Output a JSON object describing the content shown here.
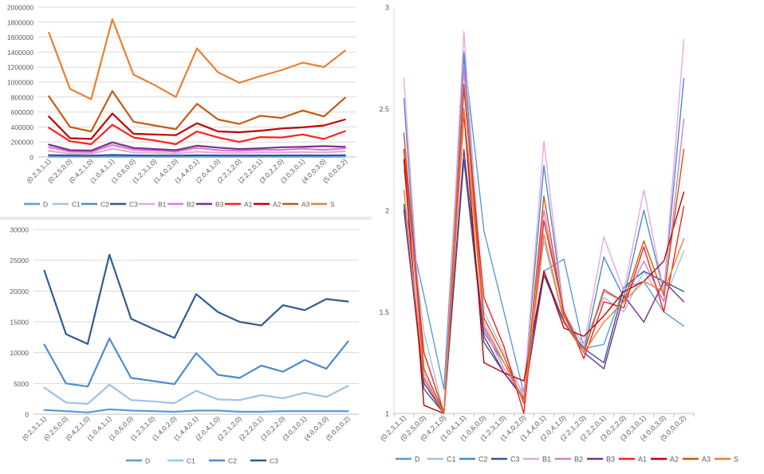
{
  "colors": {
    "D": "#5b9bd5",
    "C1": "#9dc3e6",
    "C2": "#4a8bd0",
    "C3": "#2f5d8f",
    "B1": "#e8a7e0",
    "B2": "#d67fcf",
    "B3": "#7b2f8c",
    "A1": "#ff1f1f",
    "A2": "#c00000",
    "A3": "#c55a11",
    "S": "#ed7d31"
  },
  "chart_data": [
    {
      "type": "line",
      "categories": [
        "(0.2,3,1,1)",
        "(0.2,5,0,0)",
        "(0.4,2,1,0)",
        "(1.0,4,1,1)",
        "(1.0,6,0,0)",
        "(1.2,3,1,0)",
        "(1.4,0,2,0)",
        "(1.4,4,0,1)",
        "(2.0,4,1,0)",
        "(2.2,1,2,0)",
        "(2.2,2,0,1)",
        "(3.0,2,2,0)",
        "(3.0,3,0,1)",
        "(4.0,0,3,0)",
        "(5.0,0,0,2)"
      ],
      "ylim": [
        0,
        2000000
      ],
      "yticks": [
        "0",
        "200000",
        "400000",
        "600000",
        "800000",
        "1000000",
        "1200000",
        "1400000",
        "1600000",
        "1800000",
        "2000000"
      ],
      "series": [
        {
          "name": "D",
          "values": [
            3000,
            3000,
            3000,
            4000,
            3000,
            3000,
            3000,
            3000,
            3000,
            3000,
            3000,
            3000,
            3000,
            3000,
            3000
          ]
        },
        {
          "name": "C1",
          "values": [
            15000,
            12000,
            11000,
            18000,
            13000,
            12000,
            11000,
            14000,
            12000,
            11000,
            12000,
            12000,
            13000,
            12000,
            14000
          ]
        },
        {
          "name": "C2",
          "values": [
            20000,
            16000,
            15000,
            22000,
            17000,
            16000,
            15000,
            18000,
            16000,
            15000,
            16000,
            16000,
            17000,
            16000,
            19000
          ]
        },
        {
          "name": "C3",
          "values": [
            25000,
            20000,
            18000,
            27000,
            21000,
            19000,
            18000,
            22000,
            20000,
            19000,
            20000,
            20000,
            21000,
            20000,
            23000
          ]
        },
        {
          "name": "B1",
          "values": [
            80000,
            45000,
            40000,
            110000,
            60000,
            55000,
            45000,
            70000,
            55000,
            50000,
            60000,
            60000,
            65000,
            60000,
            75000
          ]
        },
        {
          "name": "B2",
          "values": [
            130000,
            70000,
            65000,
            160000,
            95000,
            85000,
            70000,
            120000,
            90000,
            80000,
            95000,
            95000,
            110000,
            95000,
            115000
          ]
        },
        {
          "name": "B3",
          "values": [
            165000,
            90000,
            85000,
            195000,
            120000,
            105000,
            90000,
            150000,
            125000,
            105000,
            115000,
            130000,
            135000,
            145000,
            135000
          ]
        },
        {
          "name": "A1",
          "values": [
            390000,
            210000,
            170000,
            430000,
            260000,
            220000,
            170000,
            340000,
            260000,
            200000,
            265000,
            260000,
            300000,
            240000,
            345000
          ]
        },
        {
          "name": "A2",
          "values": [
            540000,
            250000,
            240000,
            580000,
            310000,
            300000,
            290000,
            450000,
            340000,
            330000,
            350000,
            380000,
            395000,
            420000,
            500000
          ]
        },
        {
          "name": "A3",
          "values": [
            810000,
            400000,
            340000,
            880000,
            470000,
            420000,
            370000,
            710000,
            500000,
            440000,
            550000,
            520000,
            620000,
            540000,
            790000
          ]
        },
        {
          "name": "S",
          "values": [
            1660000,
            910000,
            770000,
            1840000,
            1100000,
            960000,
            800000,
            1450000,
            1130000,
            990000,
            1080000,
            1160000,
            1260000,
            1200000,
            1420000
          ]
        }
      ]
    },
    {
      "type": "line",
      "categories": [
        "(0.2,3,1,1)",
        "(0.2,5,0,0)",
        "(0.4,2,1,0)",
        "(1.0,4,1,1)",
        "(1.0,6,0,0)",
        "(1.2,3,1,0)",
        "(1.4,0,2,0)",
        "(1.4,4,0,1)",
        "(2.0,4,1,0)",
        "(2.2,1,2,0)",
        "(2.2,2,0,1)",
        "(3.0,2,2,0)",
        "(3.0,3,0,1)",
        "(4.0,0,3,0)",
        "(5.0,0,0,2)"
      ],
      "ylim": [
        0,
        30000
      ],
      "yticks": [
        "0",
        "5000",
        "10000",
        "15000",
        "20000",
        "25000",
        "30000"
      ],
      "series": [
        {
          "name": "D",
          "values": [
            700,
            500,
            300,
            800,
            600,
            500,
            400,
            600,
            600,
            400,
            400,
            500,
            500,
            500,
            500
          ]
        },
        {
          "name": "C1",
          "values": [
            4300,
            1900,
            1700,
            4800,
            2300,
            2100,
            1800,
            3800,
            2400,
            2300,
            3100,
            2600,
            3500,
            2800,
            4600
          ]
        },
        {
          "name": "C2",
          "values": [
            11300,
            5000,
            4500,
            12300,
            5900,
            5400,
            4900,
            9900,
            6400,
            5900,
            7900,
            6900,
            8800,
            7400,
            11800
          ]
        },
        {
          "name": "C3",
          "values": [
            23300,
            13000,
            11400,
            25900,
            15500,
            13900,
            12400,
            19500,
            16600,
            15000,
            14400,
            17700,
            16900,
            18700,
            18300
          ]
        }
      ]
    },
    {
      "type": "line",
      "categories": [
        "(0.2,3,1,1)",
        "(0.2,5,0,0)",
        "(0.4,2,1,0)",
        "(1.0,4,1,1)",
        "(1.0,6,0,0)",
        "(1.2,3,1,0)",
        "(1.4,0,2,0)",
        "(1.4,4,0,1)",
        "(2.0,4,1,0)",
        "(2.2,1,2,0)",
        "(2.2,2,0,1)",
        "(3.0,2,2,0)",
        "(3.0,3,0,1)",
        "(4.0,0,3,0)",
        "(5.0,0,0,2)"
      ],
      "ylim": [
        1,
        3
      ],
      "yticks": [
        "1",
        "1.5",
        "2",
        "2.5",
        "3"
      ],
      "series": [
        {
          "name": "D",
          "values": [
            2.03,
            1.58,
            1.12,
            2.78,
            1.9,
            1.5,
            1.1,
            1.7,
            1.76,
            1.32,
            1.34,
            1.62,
            1.65,
            1.5,
            1.43
          ]
        },
        {
          "name": "C1",
          "values": [
            2.2,
            1.4,
            1.0,
            2.5,
            1.5,
            1.3,
            1.08,
            1.85,
            1.45,
            1.35,
            1.57,
            1.5,
            1.7,
            1.55,
            1.8
          ]
        },
        {
          "name": "C2",
          "values": [
            2.55,
            1.15,
            1.0,
            2.77,
            1.4,
            1.25,
            1.1,
            2.22,
            1.5,
            1.3,
            1.77,
            1.57,
            2.0,
            1.6,
            2.65
          ]
        },
        {
          "name": "C3",
          "values": [
            2.03,
            1.12,
            1.0,
            2.25,
            1.35,
            1.2,
            1.08,
            1.68,
            1.45,
            1.32,
            1.25,
            1.62,
            1.7,
            1.65,
            1.6
          ]
        },
        {
          "name": "B1",
          "values": [
            2.65,
            1.2,
            1.0,
            2.88,
            1.45,
            1.25,
            1.1,
            2.34,
            1.5,
            1.33,
            1.87,
            1.6,
            2.1,
            1.6,
            2.84
          ]
        },
        {
          "name": "B2",
          "values": [
            2.3,
            1.18,
            1.0,
            2.7,
            1.42,
            1.22,
            1.08,
            2.0,
            1.48,
            1.3,
            1.6,
            1.55,
            1.75,
            1.55,
            2.45
          ]
        },
        {
          "name": "B3",
          "values": [
            2.0,
            1.15,
            1.0,
            2.3,
            1.38,
            1.2,
            1.07,
            1.7,
            1.45,
            1.3,
            1.22,
            1.58,
            1.45,
            1.65,
            1.55
          ]
        },
        {
          "name": "A1",
          "values": [
            2.3,
            1.3,
            1.0,
            2.6,
            1.57,
            1.33,
            1.0,
            1.95,
            1.5,
            1.27,
            1.55,
            1.52,
            1.82,
            1.5,
            2.02
          ]
        },
        {
          "name": "A2",
          "values": [
            2.25,
            1.04,
            1.0,
            2.48,
            1.25,
            1.2,
            1.16,
            1.7,
            1.42,
            1.38,
            1.48,
            1.6,
            1.65,
            1.75,
            2.09
          ]
        },
        {
          "name": "A3",
          "values": [
            2.38,
            1.22,
            1.0,
            2.62,
            1.47,
            1.28,
            1.05,
            2.07,
            1.48,
            1.3,
            1.61,
            1.55,
            1.85,
            1.58,
            2.3
          ]
        },
        {
          "name": "S",
          "values": [
            2.1,
            1.17,
            1.0,
            2.5,
            1.43,
            1.25,
            1.06,
            1.88,
            1.46,
            1.3,
            1.45,
            1.55,
            1.65,
            1.6,
            1.86
          ]
        }
      ]
    }
  ]
}
